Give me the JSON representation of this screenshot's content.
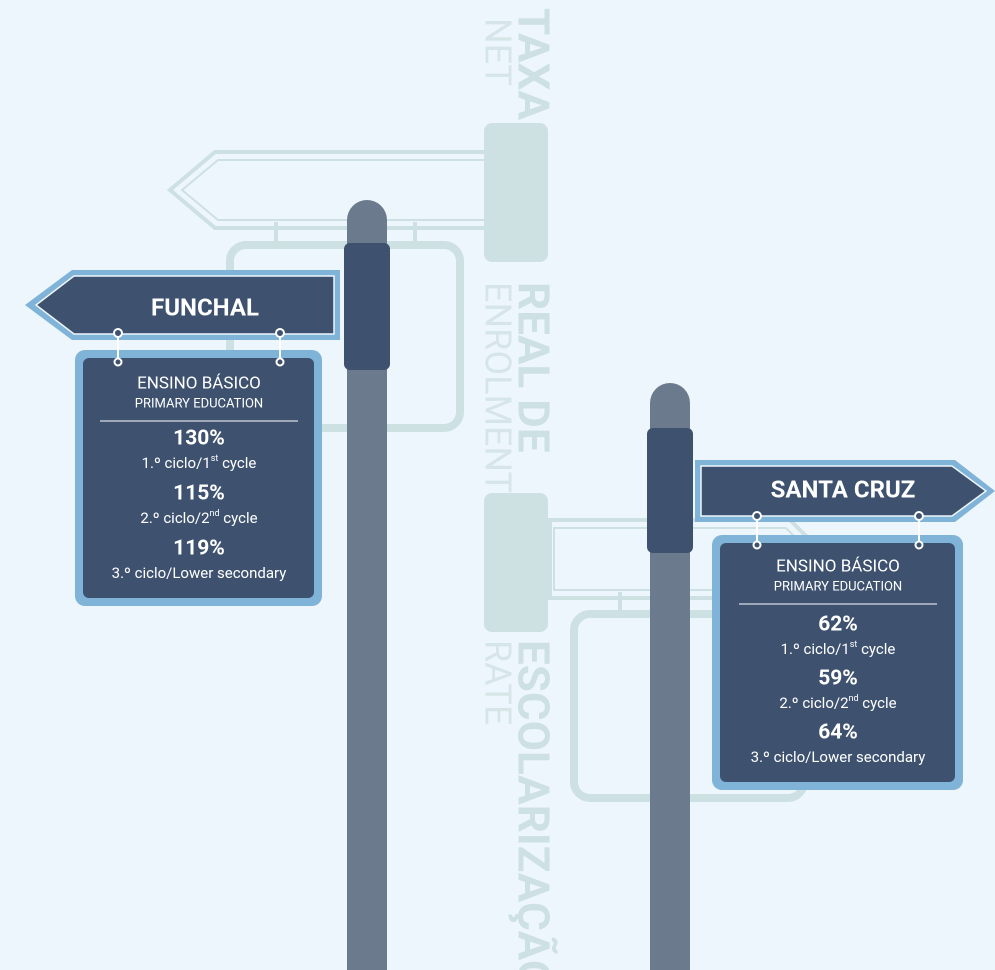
{
  "title_pt": [
    "TAXA",
    "REAL DE",
    "ESCOLARIZAÇÃO"
  ],
  "title_en": [
    "NET",
    "ENROLMENT",
    "RATE"
  ],
  "signs": [
    {
      "name": "FUNCHAL",
      "level_pt": "ENSINO BÁSICO",
      "level_en": "PRIMARY EDUCATION",
      "rows": [
        {
          "value": "130%",
          "cycle_pt": "1.º ciclo/",
          "cycle_num": "1",
          "cycle_sup": "st",
          "cycle_en": " cycle"
        },
        {
          "value": "115%",
          "cycle_pt": "2.º ciclo/",
          "cycle_num": "2",
          "cycle_sup": "nd",
          "cycle_en": " cycle"
        },
        {
          "value": "119%",
          "cycle_pt": "3.º ciclo/",
          "cycle_en": "Lower secondary"
        }
      ]
    },
    {
      "name": "SANTA CRUZ",
      "level_pt": "ENSINO BÁSICO",
      "level_en": "PRIMARY EDUCATION",
      "rows": [
        {
          "value": "62%",
          "cycle_pt": "1.º ciclo/",
          "cycle_num": "1",
          "cycle_sup": "st",
          "cycle_en": " cycle"
        },
        {
          "value": "59%",
          "cycle_pt": "2.º ciclo/",
          "cycle_num": "2",
          "cycle_sup": "nd",
          "cycle_en": " cycle"
        },
        {
          "value": "64%",
          "cycle_pt": "3.º ciclo/",
          "cycle_en": "Lower secondary"
        }
      ]
    }
  ]
}
